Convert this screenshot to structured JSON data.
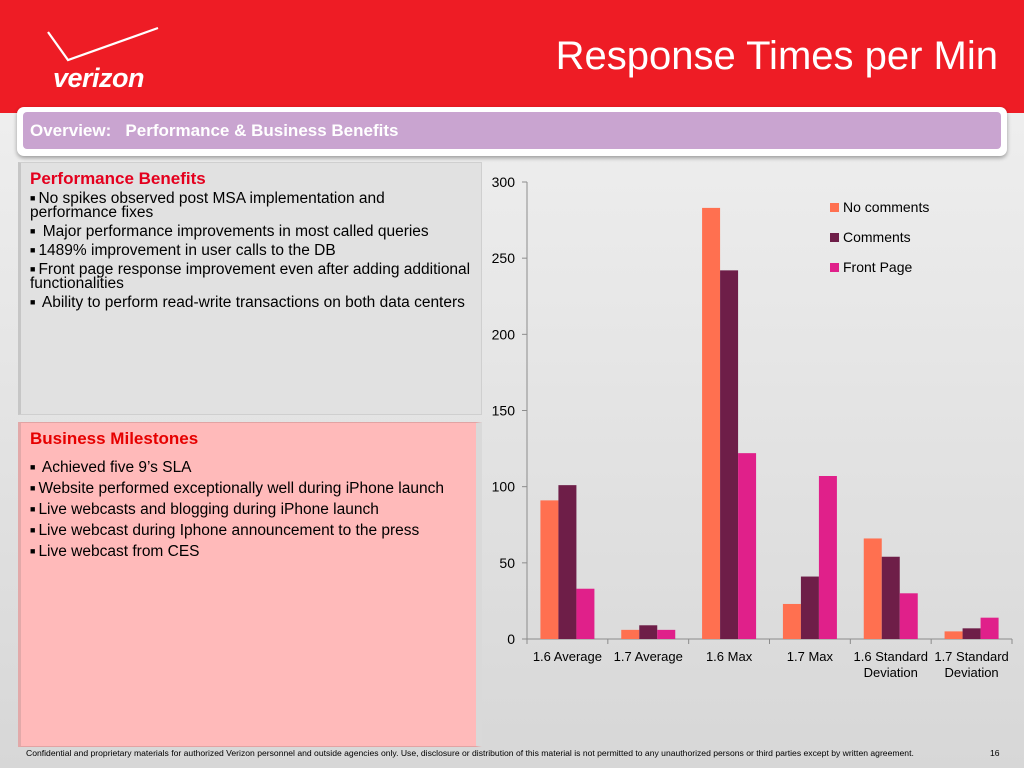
{
  "header": {
    "logo_text": "verizon",
    "title": "Response Times per Min"
  },
  "overview": {
    "label": "Overview:   Performance & Business Benefits"
  },
  "performance": {
    "heading": "Performance Benefits",
    "items": [
      "No spikes observed post MSA implementation and performance fixes",
      " Major performance improvements in most called queries",
      "1489% improvement in user calls to the DB",
      "Front page response improvement even after adding additional functionalities",
      " Ability to perform read-write transactions on both data centers"
    ]
  },
  "business": {
    "heading": "Business Milestones",
    "items": [
      " Achieved five 9’s SLA",
      "Website performed exceptionally well during iPhone launch",
      "Live webcasts and blogging during iPhone launch",
      "Live webcast during Iphone announcement to the press",
      "Live webcast from CES"
    ]
  },
  "footer": {
    "disclaimer": "Confidential and proprietary materials for authorized Verizon personnel and outside agencies only. Use, disclosure or distribution of this material is not permitted to any unauthorized persons or third parties except by written agreement.",
    "page_number": "16"
  },
  "chart_data": {
    "type": "bar",
    "categories": [
      [
        "1.6 Average"
      ],
      [
        "1.7 Average"
      ],
      [
        "1.6 Max"
      ],
      [
        "1.7 Max"
      ],
      [
        "1.6 Standard",
        "Deviation"
      ],
      [
        "1.7 Standard",
        "Deviation"
      ]
    ],
    "series": [
      {
        "name": "No comments",
        "color": "#ff7050",
        "values": [
          91,
          6,
          283,
          23,
          66,
          5
        ]
      },
      {
        "name": "Comments",
        "color": "#6e1e48",
        "values": [
          101,
          9,
          242,
          41,
          54,
          7
        ]
      },
      {
        "name": "Front Page",
        "color": "#e0208a",
        "values": [
          33,
          6,
          122,
          107,
          30,
          14
        ]
      }
    ],
    "ylim": [
      0,
      300
    ],
    "yticks": [
      0,
      50,
      100,
      150,
      200,
      250,
      300
    ],
    "legend_position": "top-right",
    "grid": false
  }
}
